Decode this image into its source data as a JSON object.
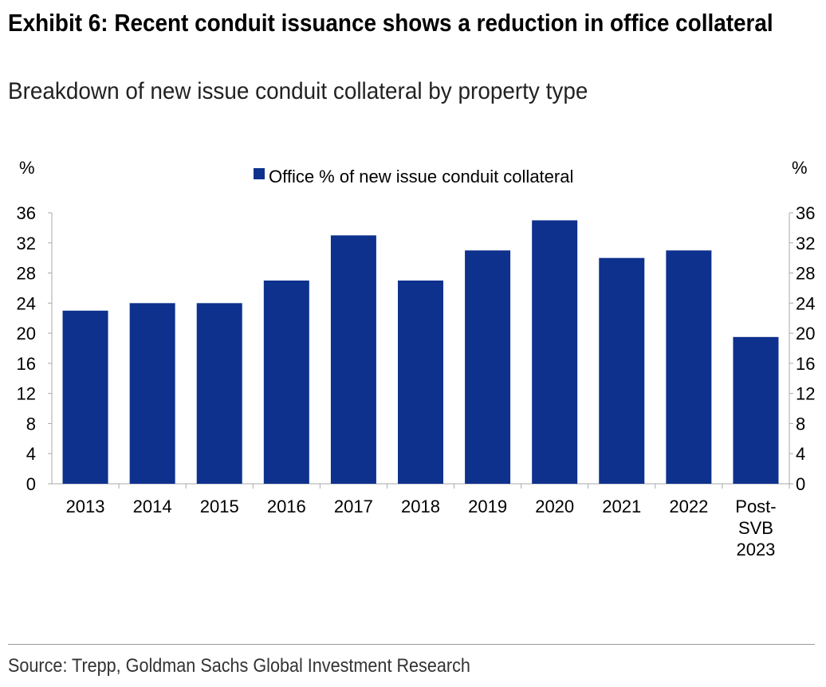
{
  "title": "Exhibit 6: Recent conduit issuance shows a reduction in office collateral",
  "subtitle": "Breakdown of new issue conduit collateral by property type",
  "source": "Source: Trepp, Goldman Sachs Global Investment Research",
  "chart_data": {
    "type": "bar",
    "title": "Exhibit 6: Recent conduit issuance shows a reduction in office collateral",
    "categories": [
      "2013",
      "2014",
      "2015",
      "2016",
      "2017",
      "2018",
      "2019",
      "2020",
      "2021",
      "2022",
      [
        "Post-",
        "SVB",
        "2023"
      ]
    ],
    "series": [
      {
        "name": "Office % of new issue conduit collateral",
        "values": [
          23,
          24,
          24,
          27,
          33,
          27,
          31,
          35,
          30,
          31,
          19.5
        ],
        "color": "#0d318d"
      }
    ],
    "ylabel_left": "%",
    "ylabel_right": "%",
    "ylim": [
      0,
      36
    ],
    "yticks": [
      0,
      4,
      8,
      12,
      16,
      20,
      24,
      28,
      32,
      36
    ],
    "legend": "top-center",
    "grid": false
  }
}
